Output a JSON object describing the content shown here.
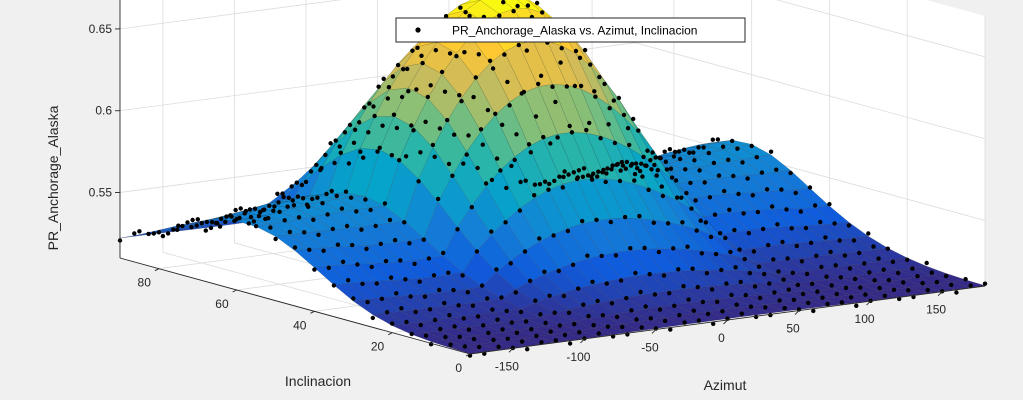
{
  "figure": {
    "background": "#f0f0f0",
    "axes_background": "#ffffff"
  },
  "chart_data": {
    "type": "surface-scatter3d",
    "title": "",
    "xlabel": "Azimut",
    "ylabel": "Inclinacion",
    "zlabel": "PR_Anchorage_Alaska",
    "xlim": [
      -180,
      180
    ],
    "ylim": [
      0,
      90
    ],
    "zlim": [
      0.51,
      0.675
    ],
    "xticks": [
      -150,
      -100,
      -50,
      0,
      50,
      100,
      150
    ],
    "yticks": [
      0,
      20,
      40,
      60,
      80
    ],
    "zticks": [
      0.55,
      0.6,
      0.65
    ],
    "ztick_labels": [
      "0.55",
      "0.6",
      "0.65"
    ],
    "grid": true,
    "colormap": "parula",
    "legend": {
      "position": "top",
      "entries": [
        "PR_Anchorage_Alaska vs. Azimut, Inclinacion"
      ]
    },
    "series": [
      {
        "kind": "scatter",
        "marker_color": "#000000",
        "description_values": "PR sampled on grid Azimut -180..180 step 10, Inclinacion 0..90 step 5",
        "azimut_grid": [
          -180,
          180,
          10
        ],
        "inclinacion_grid": [
          0,
          90,
          5
        ]
      },
      {
        "kind": "fitted-surface",
        "colors": [
          "#352a87",
          "#0f5cdd",
          "#1481d6",
          "#06a4ca",
          "#2eb7a4",
          "#87bf77",
          "#d1bb59",
          "#fec832",
          "#f9fb0e"
        ]
      }
    ],
    "model": {
      "base": 0.51,
      "amp": 0.16,
      "peak_inclinacion": 60,
      "inclinacion_width": 26
    }
  }
}
